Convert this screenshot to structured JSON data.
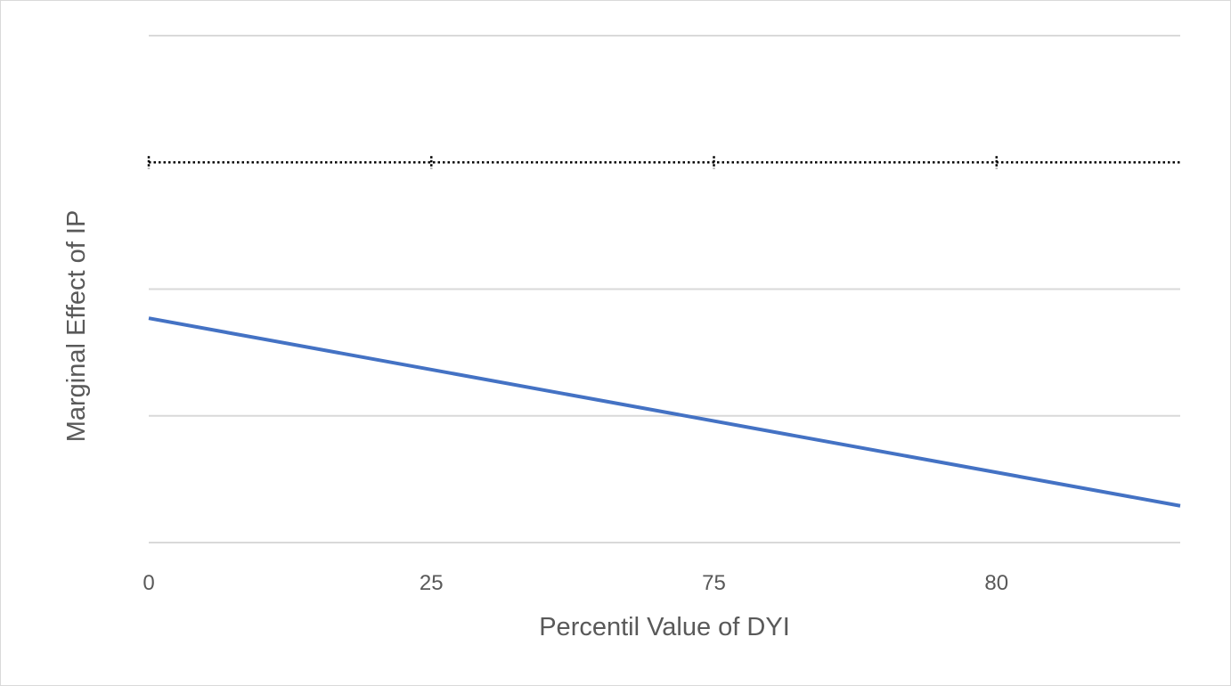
{
  "chart_data": {
    "type": "line",
    "title": "",
    "xlabel": "Percentil Value of DYI",
    "ylabel": "Marginal Effect of IP",
    "categories": [
      "0",
      "25",
      "75",
      "80",
      ""
    ],
    "x_positions": [
      0,
      1,
      2,
      3,
      3.65
    ],
    "xlim": [
      0,
      3.65
    ],
    "ylim": [
      0,
      4
    ],
    "y_tick_labels_shown": false,
    "grid": true,
    "gridlines_y": [
      0,
      1,
      2,
      4
    ],
    "legend": "none",
    "series": [
      {
        "kind": "solid",
        "color": "#4472C4",
        "x": [
          0,
          3.65
        ],
        "y": [
          1.77,
          0.29
        ]
      },
      {
        "kind": "dotted",
        "color": "#000000",
        "x": [
          0,
          3.65
        ],
        "y": [
          3,
          3
        ],
        "markers_at": [
          0,
          1,
          2,
          3
        ]
      }
    ],
    "colors": {
      "grid": "#d9d9d9",
      "text": "#595959"
    }
  }
}
